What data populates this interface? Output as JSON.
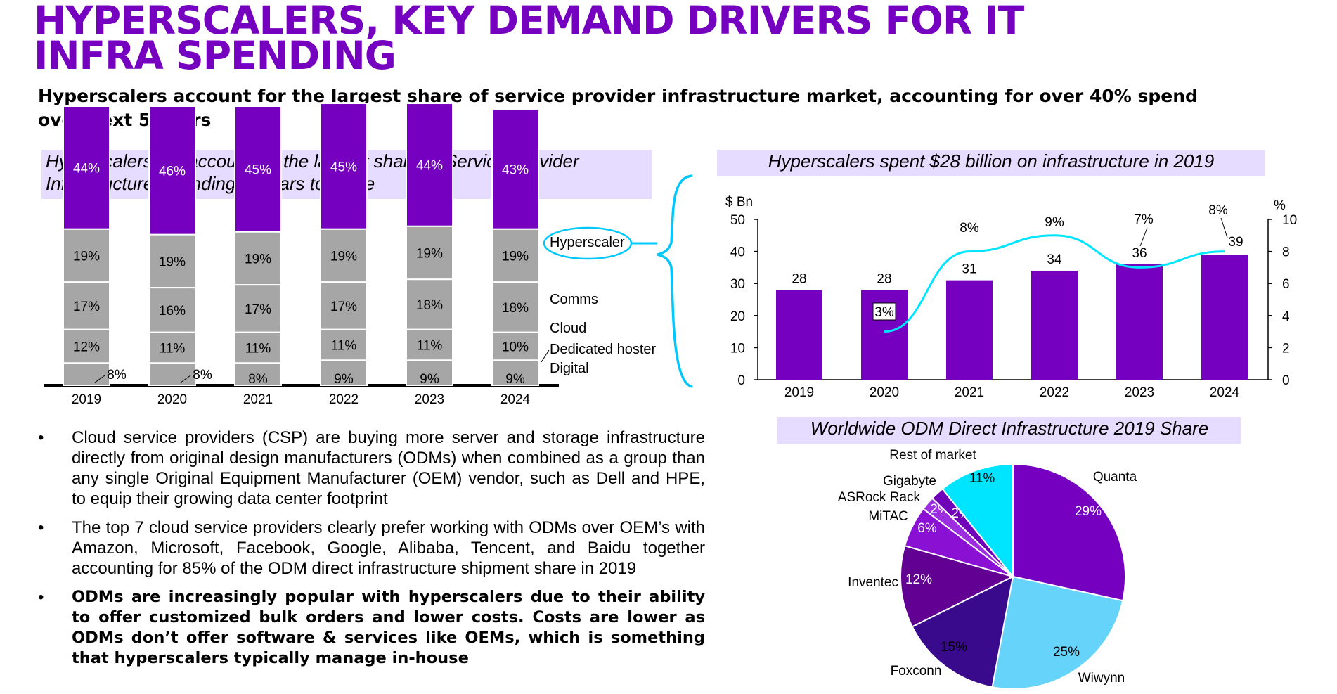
{
  "page": {
    "title": "HYPERSCALERS, KEY DEMAND DRIVERS FOR IT INFRA SPENDING",
    "subtitle": "Hyperscalers account for the largest share of service provider infrastructure market, accounting for over 40% spend over next 5 years"
  },
  "colors": {
    "purple": "#7500c0",
    "gray": "#a6a6a6",
    "cyan": "#00e5ff",
    "light_blue": "#66d3fa",
    "box_bg": "#e6dcff"
  },
  "bullets": [
    {
      "text": "Cloud service providers (CSP) are buying more server and storage infrastructure directly from original design manufacturers (ODMs) when combined as a group than any single Original Equipment Manufacturer (OEM) vendor, such as Dell and HPE, to equip their growing data center footprint",
      "bold": false
    },
    {
      "text": "The top 7 cloud service providers clearly prefer working with ODMs over OEM’s with Amazon, Microsoft, Facebook, Google, Alibaba, Tencent, and Baidu together accounting for 85% of the ODM direct infrastructure shipment share in 2019",
      "bold": false
    },
    {
      "text": "ODMs are increasingly popular with hyperscalers due to their ability to offer customized bulk orders and lower costs. Costs are lower as ODMs don’t offer software & services like OEMs, which is something that hyperscalers typically manage in-house",
      "bold": true
    }
  ],
  "chart_data": [
    {
      "type": "bar",
      "stacked": true,
      "title": "Hyperscalers will account for the largest share of Service Provider Infrastructure Spending in years to come",
      "categories": [
        "2019",
        "2020",
        "2021",
        "2022",
        "2023",
        "2024"
      ],
      "series": [
        {
          "name": "Digital",
          "values": [
            8,
            8,
            8,
            9,
            9,
            9
          ]
        },
        {
          "name": "Dedicated hoster",
          "values": [
            12,
            11,
            11,
            11,
            11,
            10
          ]
        },
        {
          "name": "Cloud",
          "values": [
            17,
            16,
            17,
            17,
            18,
            18
          ]
        },
        {
          "name": "Comms",
          "values": [
            19,
            19,
            19,
            19,
            19,
            19
          ]
        },
        {
          "name": "Hyperscaler",
          "values": [
            44,
            46,
            45,
            45,
            44,
            43
          ]
        }
      ],
      "value_labels": [
        [
          "8%",
          "12%",
          "17%",
          "19%",
          "44%"
        ],
        [
          "8%",
          "11%",
          "16%",
          "19%",
          "46%"
        ],
        [
          "8%",
          "11%",
          "17%",
          "19%",
          "45%"
        ],
        [
          "9%",
          "11%",
          "17%",
          "19%",
          "45%"
        ],
        [
          "9%",
          "11%",
          "18%",
          "19%",
          "44%"
        ],
        [
          "9%",
          "10%",
          "18%",
          "19%",
          "43%"
        ]
      ],
      "legend_placement": "right"
    },
    {
      "type": "bar",
      "title": "Hyperscalers spent $28 billion on infrastructure in 2019",
      "categories": [
        "2019",
        "2020",
        "2021",
        "2022",
        "2023",
        "2024"
      ],
      "values": [
        28,
        28,
        31,
        34,
        36,
        39
      ],
      "y_unit": "$ Bn",
      "ylim": [
        0,
        50
      ],
      "yticks": [
        "0",
        "10",
        "20",
        "30",
        "40",
        "50"
      ],
      "line": {
        "categories": [
          "2020",
          "2021",
          "2022",
          "2023",
          "2024"
        ],
        "values": [
          3,
          8,
          9,
          7,
          8
        ],
        "labels": [
          "3%",
          "8%",
          "9%",
          "7%",
          "8%"
        ],
        "axis_unit": "%",
        "ylim": [
          0,
          10
        ],
        "yticks": [
          "0",
          "2",
          "4",
          "6",
          "8",
          "10"
        ]
      }
    },
    {
      "type": "pie",
      "title": "Worldwide ODM Direct Infrastructure 2019 Share",
      "slices": [
        {
          "name": "Quanta",
          "value": 29,
          "label": "29%",
          "color": "#7500c0"
        },
        {
          "name": "Wiwynn",
          "value": 25,
          "label": "25%",
          "color": "#66d3fa"
        },
        {
          "name": "Foxconn",
          "value": 15,
          "label": "15%",
          "color": "#3a0a8c"
        },
        {
          "name": "Inventec",
          "value": 12,
          "label": "12%",
          "color": "#630094"
        },
        {
          "name": "MiTAC",
          "value": 6,
          "label": "6%",
          "color": "#8a10d4"
        },
        {
          "name": "ASRock Rack",
          "value": 2,
          "label": "2%",
          "color": "#9c2ee0"
        },
        {
          "name": "Gigabyte",
          "value": 2,
          "label": "2%",
          "color": "#7000b8"
        },
        {
          "name": "Rest of market",
          "value": 11,
          "label": "11%",
          "color": "#00e5ff"
        }
      ]
    }
  ]
}
